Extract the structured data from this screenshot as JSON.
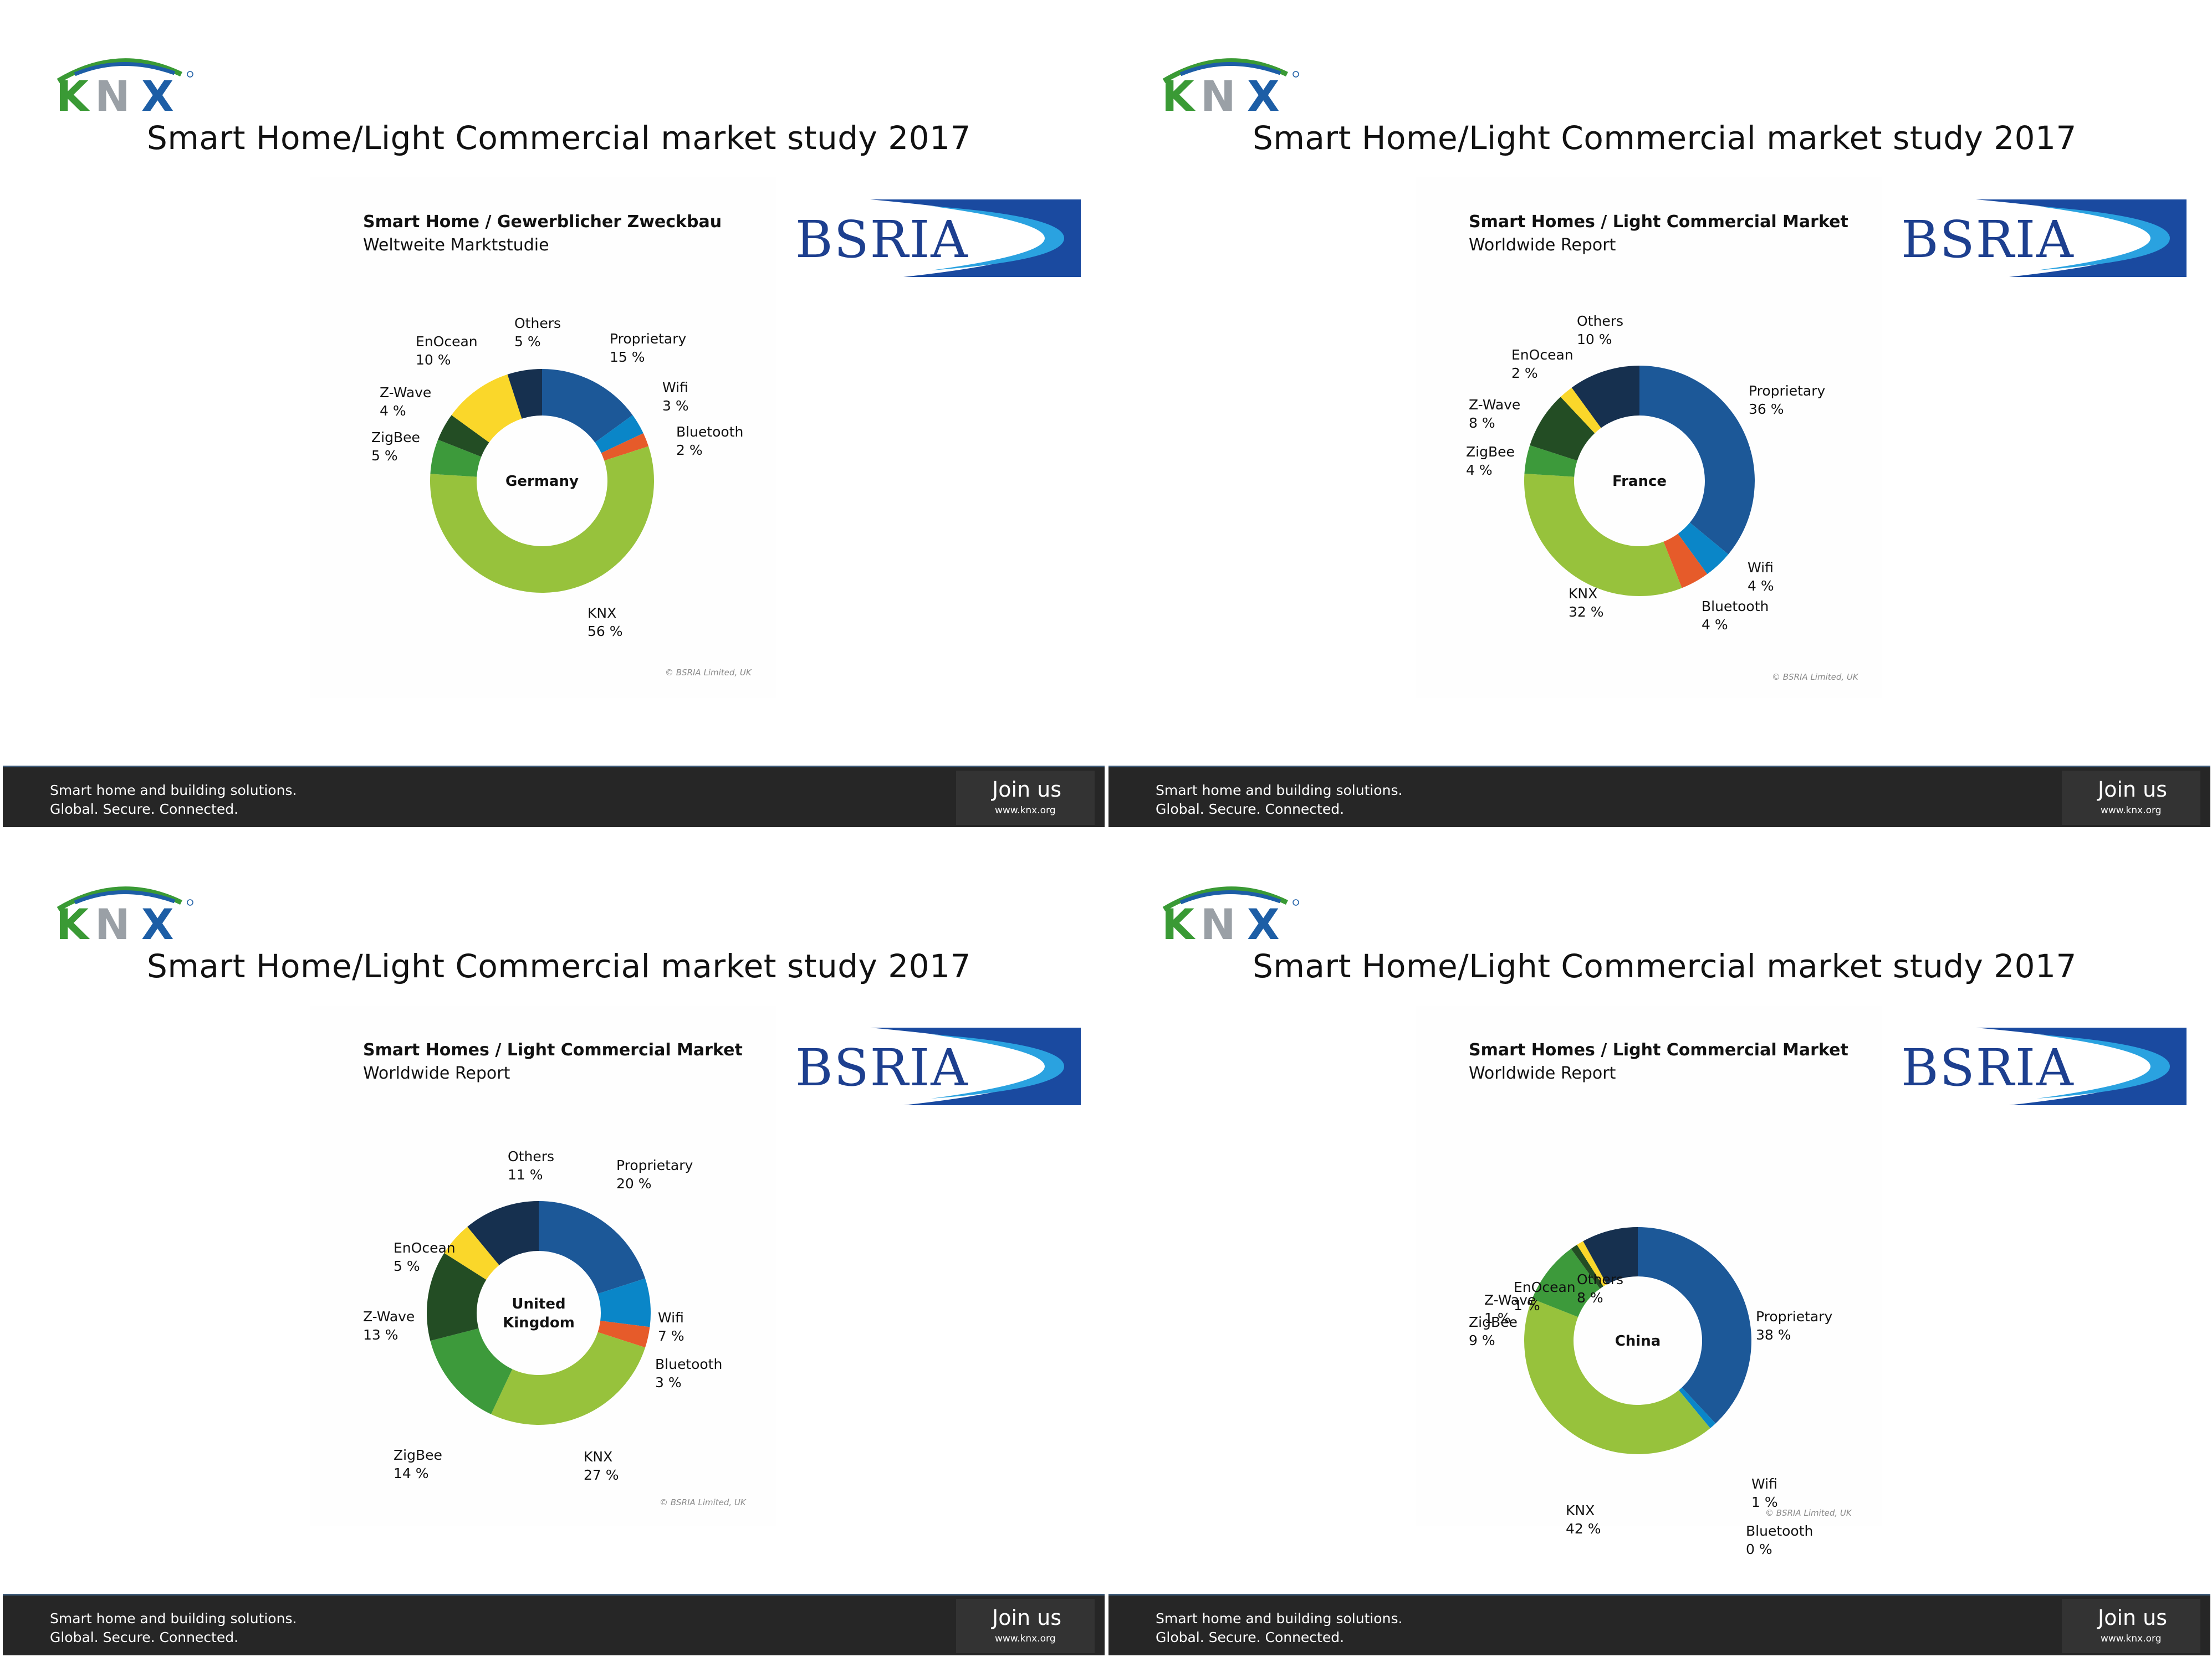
{
  "slide_title": "Smart Home/Light Commercial market study 2017",
  "footer": {
    "tagline_1": "Smart home and building solutions.",
    "tagline_2": "Global. Secure. Connected.",
    "join_label": "Join us",
    "join_url": "www.knx.org"
  },
  "logos": {
    "knx_text": "KNX",
    "bsria_text": "BSRIA"
  },
  "colors": {
    "Proprietary": "#1c5898",
    "Wifi": "#0a86c8",
    "Bluetooth": "#e65b2a",
    "KNX": "#97c23c",
    "ZigBee": "#3d9a3b",
    "Z-Wave": "#234d24",
    "EnOcean": "#fad72a",
    "Others": "#16304f"
  },
  "chart_data": [
    {
      "type": "pie",
      "style": "donut",
      "title": "Smart Home / Gewerblicher Zweckbau",
      "subtitle": "Weltweite Marktstudie",
      "center_label": [
        "Germany"
      ],
      "copyright": "© BSRIA Limited, UK",
      "categories": [
        "Proprietary",
        "Wifi",
        "Bluetooth",
        "KNX",
        "ZigBee",
        "Z-Wave",
        "EnOcean",
        "Others"
      ],
      "values": [
        15,
        3,
        2,
        56,
        5,
        4,
        10,
        5
      ],
      "labels": [
        "15 %",
        "3 %",
        "2 %",
        "56 %",
        "5 %",
        "4 %",
        "10 %",
        "5 %"
      ]
    },
    {
      "type": "pie",
      "style": "donut",
      "title": "Smart Homes / Light Commercial Market",
      "subtitle": "Worldwide Report",
      "center_label": [
        "France"
      ],
      "copyright": "© BSRIA Limited, UK",
      "categories": [
        "Proprietary",
        "Wifi",
        "Bluetooth",
        "KNX",
        "ZigBee",
        "Z-Wave",
        "EnOcean",
        "Others"
      ],
      "values": [
        36,
        4,
        4,
        32,
        4,
        8,
        2,
        10
      ],
      "labels": [
        "36 %",
        "4 %",
        "4 %",
        "32 %",
        "4 %",
        "8 %",
        "2 %",
        "10 %"
      ]
    },
    {
      "type": "pie",
      "style": "donut",
      "title": "Smart Homes / Light Commercial Market",
      "subtitle": "Worldwide Report",
      "center_label": [
        "United",
        "Kingdom"
      ],
      "copyright": "© BSRIA Limited, UK",
      "categories": [
        "Proprietary",
        "Wifi",
        "Bluetooth",
        "KNX",
        "ZigBee",
        "Z-Wave",
        "EnOcean",
        "Others"
      ],
      "values": [
        20,
        7,
        3,
        27,
        14,
        13,
        5,
        11
      ],
      "labels": [
        "20 %",
        "7 %",
        "3 %",
        "27 %",
        "14 %",
        "13 %",
        "5 %",
        "11 %"
      ]
    },
    {
      "type": "pie",
      "style": "donut",
      "title": "Smart Homes / Light Commercial Market",
      "subtitle": "Worldwide Report",
      "center_label": [
        "China"
      ],
      "copyright": "© BSRIA Limited, UK",
      "categories": [
        "Proprietary",
        "Wifi",
        "Bluetooth",
        "KNX",
        "ZigBee",
        "Z-Wave",
        "EnOcean",
        "Others"
      ],
      "values": [
        38,
        1,
        0,
        42,
        9,
        1,
        1,
        8
      ],
      "labels": [
        "38 %",
        "1 %",
        "0 %",
        "42 %",
        "9 %",
        "1 %",
        "1 %",
        "8 %"
      ]
    }
  ]
}
